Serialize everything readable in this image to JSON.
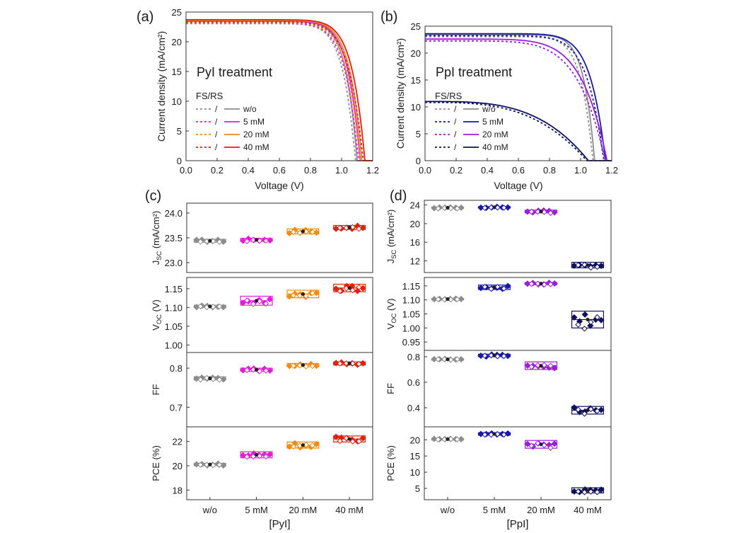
{
  "colors": {
    "wo": "#8c8c8c",
    "pyi5": "#e020d0",
    "pyi20": "#f08c10",
    "pyi40": "#e02010",
    "ppi5": "#1a1aa6",
    "ppi20": "#9a20d8",
    "ppi40": "#10105c"
  },
  "chart_data": [
    {
      "id": "a",
      "panel_label": "(a)",
      "type": "line",
      "title": "PyI treatment",
      "xlabel": "Voltage (V)",
      "ylabel": "Current density (mA/cm²)",
      "xlim": [
        0,
        1.2
      ],
      "ylim": [
        0,
        25
      ],
      "xticks": [
        "0.0",
        "0.2",
        "0.4",
        "0.6",
        "0.8",
        "1.0",
        "1.2"
      ],
      "yticks": [
        "0",
        "5",
        "10",
        "15",
        "20",
        "25"
      ],
      "legend": {
        "title": "FS/RS",
        "placement": "left",
        "entries": [
          {
            "fs": "/",
            "label": "w/o",
            "color": "wo"
          },
          {
            "fs": "/",
            "label": "5 mM",
            "color": "pyi5"
          },
          {
            "fs": "/",
            "label": "20 mM",
            "color": "pyi20"
          },
          {
            "fs": "/",
            "label": "40 mM",
            "color": "pyi40"
          }
        ]
      },
      "series": [
        {
          "name": "w/o",
          "color": "wo",
          "jsc": 23.4,
          "voc": 1.1,
          "shape": 3.2,
          "ff": 2.2
        },
        {
          "name": "5 mM",
          "color": "pyi5",
          "jsc": 23.5,
          "voc": 1.12,
          "shape": 3.0,
          "ff": 2.2
        },
        {
          "name": "20 mM",
          "color": "pyi20",
          "jsc": 23.6,
          "voc": 1.13,
          "shape": 2.9,
          "ff": 2.3
        },
        {
          "name": "40 mM",
          "color": "pyi40",
          "jsc": 23.7,
          "voc": 1.15,
          "shape": 2.8,
          "ff": 2.3
        }
      ]
    },
    {
      "id": "b",
      "panel_label": "(b)",
      "type": "line",
      "title": "PpI treatment",
      "xlabel": "Voltage (V)",
      "ylabel": "Current density (mA/cm²)",
      "xlim": [
        0,
        1.2
      ],
      "ylim": [
        0,
        25
      ],
      "xticks": [
        "0.0",
        "0.2",
        "0.4",
        "0.6",
        "0.8",
        "1.0",
        "1.2"
      ],
      "yticks": [
        "0",
        "5",
        "10",
        "15",
        "20",
        "25"
      ],
      "legend": {
        "title": "FS/RS",
        "placement": "left",
        "entries": [
          {
            "fs": "/",
            "label": "w/o",
            "color": "wo"
          },
          {
            "fs": "/",
            "label": "5 mM",
            "color": "ppi5"
          },
          {
            "fs": "/",
            "label": "20 mM",
            "color": "ppi20"
          },
          {
            "fs": "/",
            "label": "40 mM",
            "color": "ppi40"
          }
        ]
      },
      "series": [
        {
          "name": "w/o",
          "color": "wo",
          "jsc": 23.4,
          "voc": 1.09,
          "shape": 3.3,
          "ff": 2.2
        },
        {
          "name": "5 mM",
          "color": "ppi5",
          "jsc": 23.6,
          "voc": 1.16,
          "shape": 2.4,
          "ff": 2.3
        },
        {
          "name": "20 mM",
          "color": "ppi20",
          "jsc": 22.6,
          "voc": 1.17,
          "shape": 1.5,
          "ff": 2.1
        },
        {
          "name": "40 mM",
          "color": "ppi40",
          "jsc": 11.0,
          "voc": 1.05,
          "shape": 0.55,
          "ff": 2.2
        }
      ]
    },
    {
      "id": "c",
      "panel_label": "(c)",
      "type": "scatter",
      "xlabel": "[PyI]",
      "categories": [
        "w/o",
        "5 mM",
        "20 mM",
        "40 mM"
      ],
      "category_colors": [
        "wo",
        "pyi5",
        "pyi20",
        "pyi40"
      ],
      "subplots": [
        {
          "ylabel": "Jsc (mA/cm²)",
          "ylim": [
            22.8,
            24.2
          ],
          "yticks": [
            "23.0",
            "23.5",
            "24.0"
          ],
          "values": [
            23.44,
            23.46,
            23.63,
            23.71
          ],
          "spread": [
            0.03,
            0.03,
            0.05,
            0.04
          ]
        },
        {
          "ylabel": "Voc (V)",
          "ylim": [
            0.98,
            1.18
          ],
          "yticks": [
            "1.00",
            "1.05",
            "1.10",
            "1.15"
          ],
          "values": [
            1.103,
            1.118,
            1.136,
            1.152
          ],
          "spread": [
            0.003,
            0.012,
            0.01,
            0.01
          ]
        },
        {
          "ylabel": "FF",
          "ylim": [
            0.65,
            0.84
          ],
          "yticks": [
            "0.7",
            "0.8"
          ],
          "values": [
            0.774,
            0.796,
            0.808,
            0.812
          ],
          "spread": [
            0.004,
            0.004,
            0.004,
            0.004
          ]
        },
        {
          "ylabel": "PCE (%)",
          "ylim": [
            17.2,
            23.2
          ],
          "yticks": [
            "18",
            "20",
            "22"
          ],
          "values": [
            20.1,
            20.9,
            21.7,
            22.2
          ],
          "spread": [
            0.1,
            0.25,
            0.25,
            0.25
          ]
        }
      ]
    },
    {
      "id": "d",
      "panel_label": "(d)",
      "type": "scatter",
      "xlabel": "[PpI]",
      "categories": [
        "w/o",
        "5 mM",
        "20 mM",
        "40 mM"
      ],
      "category_colors": [
        "wo",
        "ppi5",
        "ppi20",
        "ppi40"
      ],
      "subplots": [
        {
          "ylabel": "Jsc (mA/cm²)",
          "ylim": [
            9.5,
            25
          ],
          "yticks": [
            "12",
            "16",
            "20",
            "24"
          ],
          "values": [
            23.4,
            23.5,
            22.6,
            11.1
          ],
          "spread": [
            0.15,
            0.15,
            0.3,
            0.6
          ]
        },
        {
          "ylabel": "Voc (V)",
          "ylim": [
            0.92,
            1.18
          ],
          "yticks": [
            "0.95",
            "1.00",
            "1.05",
            "1.10",
            "1.15"
          ],
          "values": [
            1.103,
            1.145,
            1.158,
            1.03
          ],
          "spread": [
            0.002,
            0.008,
            0.004,
            0.03
          ]
        },
        {
          "ylabel": "FF",
          "ylim": [
            0.25,
            0.85
          ],
          "yticks": [
            "0.4",
            "0.6",
            "0.8"
          ],
          "values": [
            0.78,
            0.81,
            0.73,
            0.38
          ],
          "spread": [
            0.004,
            0.01,
            0.03,
            0.03
          ]
        },
        {
          "ylabel": "PCE (%)",
          "ylim": [
            1.5,
            24
          ],
          "yticks": [
            "5",
            "10",
            "15",
            "20"
          ],
          "values": [
            20.2,
            21.8,
            18.6,
            4.4
          ],
          "spread": [
            0.15,
            0.4,
            1.2,
            0.8
          ]
        }
      ]
    }
  ]
}
